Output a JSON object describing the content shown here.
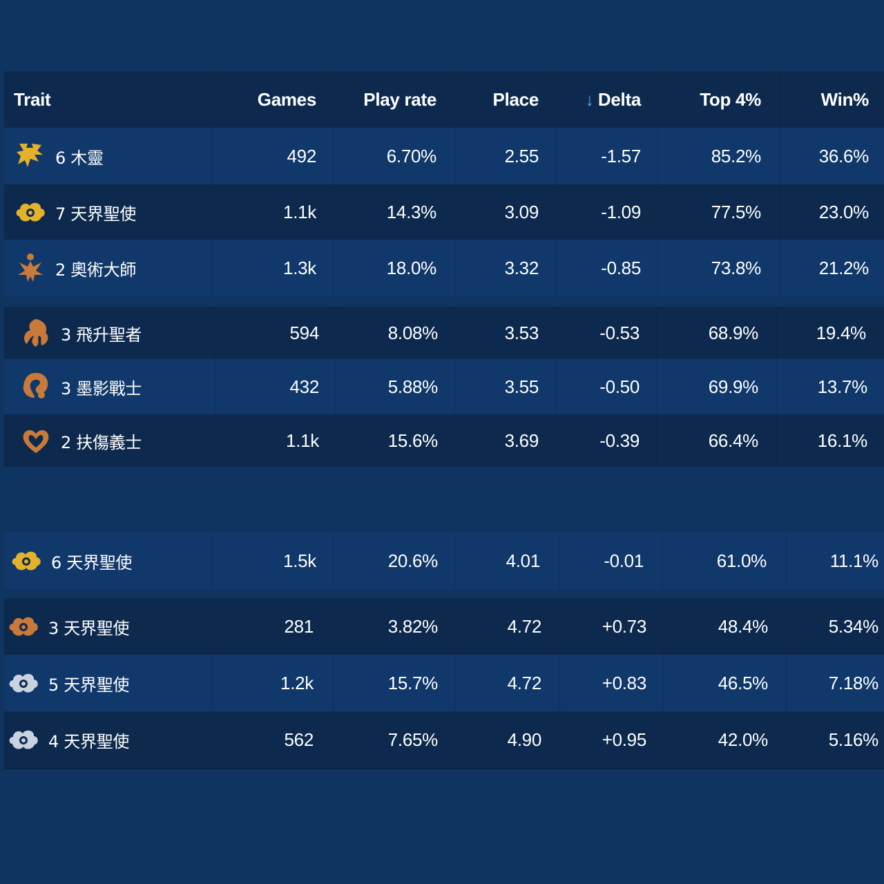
{
  "headers": {
    "trait": "Trait",
    "games": "Games",
    "play_rate": "Play rate",
    "place": "Place",
    "delta": "Delta",
    "delta_sort_icon": "arrow-down-icon",
    "top4": "Top 4%",
    "win": "Win%"
  },
  "colors": {
    "gold": "#e3b12b",
    "bronze": "#c97a3a",
    "silver": "#c9d3df"
  },
  "rows": [
    {
      "trait": "6 木靈",
      "icon": "wood-spirit-gold-icon",
      "games": "492",
      "play_rate": "6.70%",
      "place": "2.55",
      "delta": "-1.57",
      "top4": "85.2%",
      "win": "36.6%"
    },
    {
      "trait": "7 天界聖使",
      "icon": "celestial-gold-icon",
      "games": "1.1k",
      "play_rate": "14.3%",
      "place": "3.09",
      "delta": "-1.09",
      "top4": "77.5%",
      "win": "23.0%"
    },
    {
      "trait": "2 奧術大師",
      "icon": "arcanist-bronze-icon",
      "games": "1.3k",
      "play_rate": "18.0%",
      "place": "3.32",
      "delta": "-0.85",
      "top4": "73.8%",
      "win": "21.2%"
    },
    {
      "trait": "3 飛升聖者",
      "icon": "ascendant-bronze-icon",
      "games": "594",
      "play_rate": "8.08%",
      "place": "3.53",
      "delta": "-0.53",
      "top4": "68.9%",
      "win": "19.4%"
    },
    {
      "trait": "3 墨影戰士",
      "icon": "inkshadow-bronze-icon",
      "games": "432",
      "play_rate": "5.88%",
      "place": "3.55",
      "delta": "-0.50",
      "top4": "69.9%",
      "win": "13.7%"
    },
    {
      "trait": "2 扶傷義士",
      "icon": "heart-bronze-icon",
      "games": "1.1k",
      "play_rate": "15.6%",
      "place": "3.69",
      "delta": "-0.39",
      "top4": "66.4%",
      "win": "16.1%"
    },
    {
      "trait": "6 天界聖使",
      "icon": "celestial-gold-icon",
      "games": "1.5k",
      "play_rate": "20.6%",
      "place": "4.01",
      "delta": "-0.01",
      "top4": "61.0%",
      "win": "11.1%"
    },
    {
      "trait": "3 天界聖使",
      "icon": "celestial-bronze-icon",
      "games": "281",
      "play_rate": "3.82%",
      "place": "4.72",
      "delta": "+0.73",
      "top4": "48.4%",
      "win": "5.34%"
    },
    {
      "trait": "5 天界聖使",
      "icon": "celestial-silver-icon",
      "games": "1.2k",
      "play_rate": "15.7%",
      "place": "4.72",
      "delta": "+0.83",
      "top4": "46.5%",
      "win": "7.18%"
    },
    {
      "trait": "4 天界聖使",
      "icon": "celestial-silver-icon",
      "games": "562",
      "play_rate": "7.65%",
      "place": "4.90",
      "delta": "+0.95",
      "top4": "42.0%",
      "win": "5.16%"
    }
  ]
}
